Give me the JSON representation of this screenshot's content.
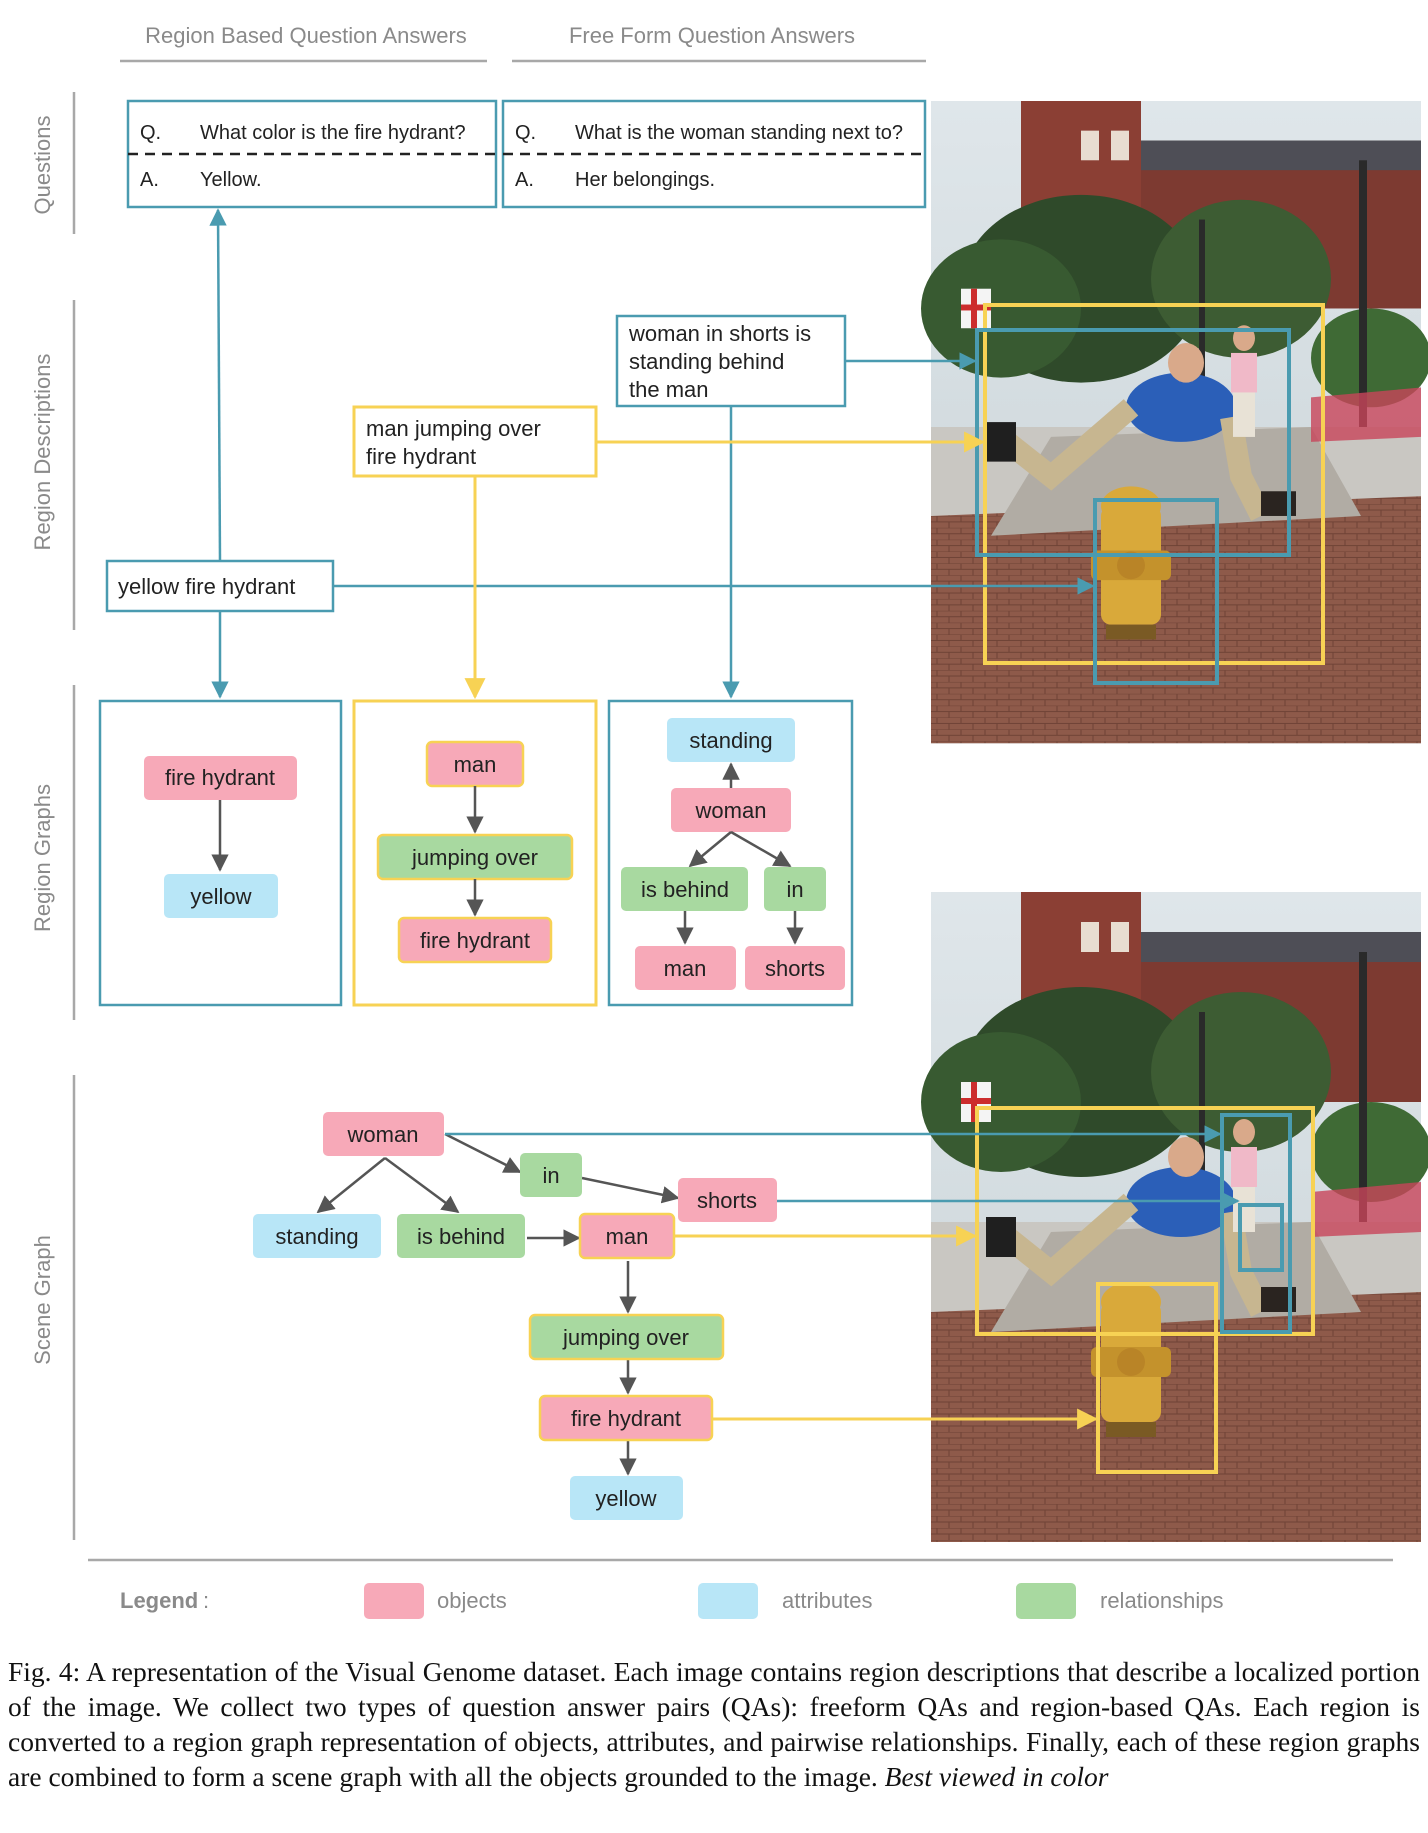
{
  "column_headers": {
    "region_qa": "Region Based Question Answers",
    "freeform_qa": "Free Form Question Answers"
  },
  "row_labels": {
    "questions": "Questions",
    "region_descriptions": "Region Descriptions",
    "region_graphs": "Region Graphs",
    "scene_graph": "Scene Graph"
  },
  "qa": {
    "region": {
      "q_marker": "Q.",
      "question": "What color is the fire hydrant?",
      "a_marker": "A.",
      "answer": "Yellow."
    },
    "freeform": {
      "q_marker": "Q.",
      "question": "What is the woman standing next to?",
      "a_marker": "A.",
      "answer": "Her belongings."
    }
  },
  "region_descriptions": {
    "woman": [
      "woman in shorts is",
      "standing behind",
      "the man"
    ],
    "man": [
      "man jumping over",
      "fire hydrant"
    ],
    "hydrant": [
      "yellow fire hydrant"
    ]
  },
  "region_graphs": {
    "hydrant": {
      "object": "fire hydrant",
      "attribute": "yellow"
    },
    "man": {
      "object": "man",
      "relationship": "jumping over",
      "target": "fire hydrant"
    },
    "woman": {
      "attribute": "standing",
      "object": "woman",
      "rel1": "is behind",
      "rel2": "in",
      "target1": "man",
      "target2": "shorts"
    }
  },
  "scene_graph": {
    "woman": "woman",
    "in": "in",
    "shorts": "shorts",
    "standing": "standing",
    "is_behind": "is behind",
    "man": "man",
    "jumping_over": "jumping over",
    "fire_hydrant": "fire hydrant",
    "yellow": "yellow"
  },
  "legend": {
    "title": "Legend",
    "colon": ":",
    "objects": "objects",
    "attributes": "attributes",
    "relationships": "relationships"
  },
  "colors": {
    "object": "#f7a9b8",
    "attribute": "#b8e6f7",
    "relationship": "#a8d9a0",
    "teal": "#4a9bb0",
    "yellow": "#f7d254",
    "label_gray": "#8a8a8a"
  },
  "caption": {
    "text": "Fig. 4: A representation of the Visual Genome dataset. Each image contains region descriptions that describe a localized portion of the image. We collect two types of question answer pairs (QAs): freeform QAs and region-based QAs. Each region is converted to a region graph representation of objects, attributes, and pairwise relationships. Finally, each of these region graphs are combined to form a scene graph with all the objects grounded to the image.",
    "note": "Best viewed in color"
  }
}
